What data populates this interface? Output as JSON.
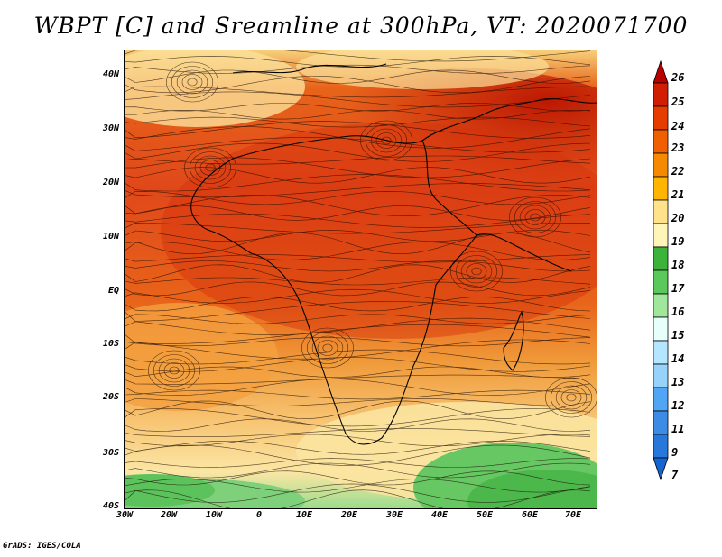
{
  "title": "WBPT [C] and Sreamline at 300hPa, VT: 2020071700",
  "footer": "GrADS: IGES/COLA",
  "map": {
    "lat_labels": [
      "40N",
      "30N",
      "20N",
      "10N",
      "EQ",
      "10S",
      "20S",
      "30S",
      "40S"
    ],
    "lon_labels": [
      "30W",
      "20W",
      "10W",
      "0",
      "10E",
      "20E",
      "30E",
      "40E",
      "50E",
      "60E",
      "70E"
    ],
    "lat_range": [
      -40,
      45
    ],
    "lon_range": [
      -30,
      75
    ]
  },
  "colorbar": {
    "labels": [
      "26",
      "25",
      "24",
      "23",
      "22",
      "21",
      "20",
      "19",
      "18",
      "17",
      "16",
      "15",
      "14",
      "13",
      "12",
      "11",
      "9",
      "7"
    ],
    "colors": [
      "#b90000",
      "#d21e00",
      "#e63c00",
      "#f05f00",
      "#f58a00",
      "#ffb400",
      "#ffe28a",
      "#fff5b8",
      "#3cb43c",
      "#5ac85a",
      "#a0e69b",
      "#e6fffa",
      "#b4e6ff",
      "#96d2fa",
      "#50a5f5",
      "#3c8ce6",
      "#2878dc",
      "#1464d2"
    ]
  },
  "colors": {
    "warm_core": "#c81400",
    "warm": "#e65a00",
    "mid": "#f08c1e",
    "cool": "#fce89a",
    "green": "#5ac85a"
  }
}
